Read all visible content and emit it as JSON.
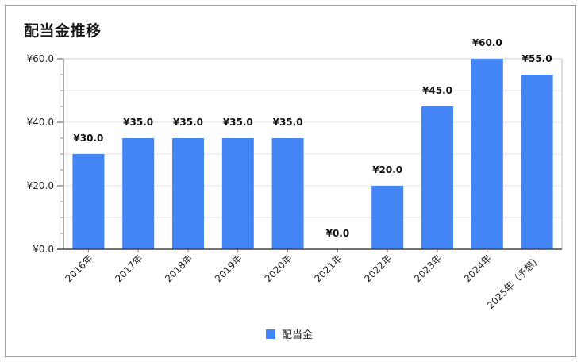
{
  "chart_data": {
    "type": "bar",
    "title": "配当金推移",
    "categories": [
      "2016年",
      "2017年",
      "2018年",
      "2019年",
      "2020年",
      "2021年",
      "2022年",
      "2023年",
      "2024年",
      "2025年（予想）"
    ],
    "series": [
      {
        "name": "配当金",
        "values": [
          30.0,
          35.0,
          35.0,
          35.0,
          35.0,
          0.0,
          20.0,
          45.0,
          60.0,
          55.0
        ]
      }
    ],
    "data_labels": [
      "¥30.0",
      "¥35.0",
      "¥35.0",
      "¥35.0",
      "¥35.0",
      "¥0.0",
      "¥20.0",
      "¥45.0",
      "¥60.0",
      "¥55.0"
    ],
    "yticks": [
      0,
      20,
      40,
      60
    ],
    "ytick_labels": [
      "¥0.0",
      "¥20.0",
      "¥40.0",
      "¥60.0"
    ],
    "ylim": [
      0,
      60
    ],
    "xlabel": "",
    "ylabel": "",
    "bar_color": "#4385f5",
    "grid": true,
    "legend_position": "bottom"
  }
}
